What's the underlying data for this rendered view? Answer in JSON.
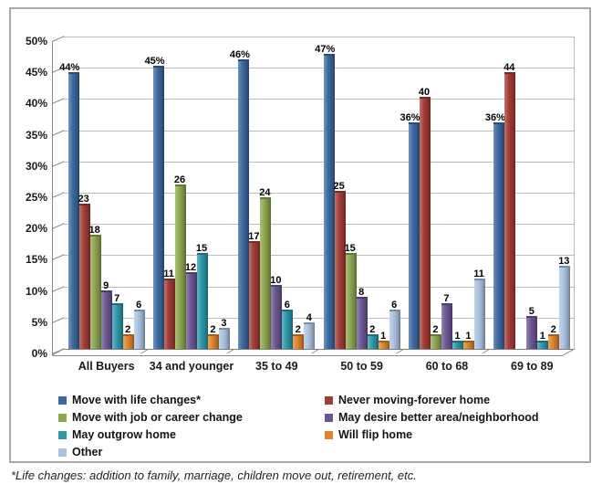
{
  "chart_data": {
    "type": "bar",
    "title": "",
    "categories": [
      "All Buyers",
      "34 and younger",
      "35 to 49",
      "50 to 59",
      "60 to 68",
      "69 to 89"
    ],
    "series": [
      {
        "name": "Move with life changes*",
        "color": "#3A68A0",
        "values": [
          44,
          45,
          46,
          47,
          36,
          36
        ],
        "labels": [
          "44%",
          "45%",
          "46%",
          "47%",
          "36%",
          "36%"
        ]
      },
      {
        "name": "Never moving-forever home",
        "color": "#A33C35",
        "values": [
          23,
          11,
          17,
          25,
          40,
          44
        ],
        "labels": [
          "23",
          "11",
          "17",
          "25",
          "40",
          "44"
        ]
      },
      {
        "name": "Move with job or career change",
        "color": "#8CA64E",
        "values": [
          18,
          26,
          24,
          15,
          2,
          0
        ],
        "labels": [
          "18",
          "26",
          "24",
          "15",
          "2",
          ""
        ]
      },
      {
        "name": "May desire better area/neighborhood",
        "color": "#6B5694",
        "values": [
          9,
          12,
          10,
          8,
          7,
          5
        ],
        "labels": [
          "9",
          "12",
          "10",
          "8",
          "7",
          "5"
        ]
      },
      {
        "name": "May outgrow home",
        "color": "#2D97A9",
        "values": [
          7,
          15,
          6,
          2,
          1,
          1
        ],
        "labels": [
          "7",
          "15",
          "6",
          "2",
          "1",
          "1"
        ]
      },
      {
        "name": "Will flip home",
        "color": "#E18327",
        "values": [
          2,
          2,
          2,
          1,
          1,
          2
        ],
        "labels": [
          "2",
          "2",
          "2",
          "1",
          "1",
          "2"
        ]
      },
      {
        "name": "Other",
        "color": "#A9C2E0",
        "values": [
          6,
          3,
          4,
          6,
          11,
          13
        ],
        "labels": [
          "6",
          "3",
          "4",
          "6",
          "11",
          "13"
        ]
      }
    ],
    "y_ticks": [
      "0%",
      "5%",
      "10%",
      "15%",
      "20%",
      "25%",
      "30%",
      "35%",
      "40%",
      "45%",
      "50%"
    ],
    "ylim": [
      0,
      50
    ],
    "grid": true,
    "legend_position": "bottom",
    "legend_columns": [
      [
        0,
        2,
        4,
        6
      ],
      [
        1,
        3,
        5
      ]
    ],
    "xlabel": "",
    "ylabel": ""
  },
  "colors": {
    "frame_border": "#a8a8a8",
    "gridline": "#bcbcbc",
    "axis": "#7f7f7f",
    "label_text": "#000000"
  },
  "footnote": "*Life changes: addition to family, marriage, children move out, retirement, etc."
}
